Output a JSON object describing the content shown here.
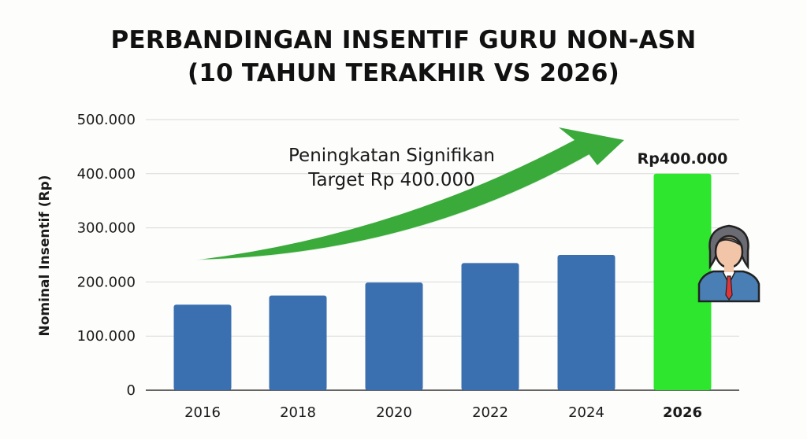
{
  "title_line1": "PERBANDINGAN INSENTIF GURU NON-ASN",
  "title_line2": "(10 TAHUN TERAKHIR VS 2026)",
  "chart_data": {
    "type": "bar",
    "categories": [
      "2016",
      "2018",
      "2020",
      "2022",
      "2024",
      "2026"
    ],
    "values": [
      158000,
      175000,
      199000,
      235000,
      250000,
      400000
    ],
    "ylabel": "Nominal Insentif (Rp)",
    "ylim": [
      0,
      500000
    ],
    "yticks": [
      0,
      100000,
      200000,
      300000,
      400000,
      500000
    ],
    "ytick_labels": [
      "0",
      "100.000",
      "200.000",
      "300.000",
      "400.000",
      "500.000"
    ],
    "grid": true,
    "colors": {
      "bar": "#3a6fb0",
      "highlight_bar": "#2ee62e",
      "arrow": "#3aaa3a",
      "grid": "#d9d9d9"
    },
    "highlight_category": "2026",
    "data_labels": [
      {
        "category": "2026",
        "text": "Rp400.000"
      }
    ],
    "annotation_lines": [
      "Peningkatan Signifikan",
      "Target Rp 400.000"
    ]
  },
  "icons": [
    "teacher-avatar-icon",
    "trend-arrow-icon"
  ]
}
